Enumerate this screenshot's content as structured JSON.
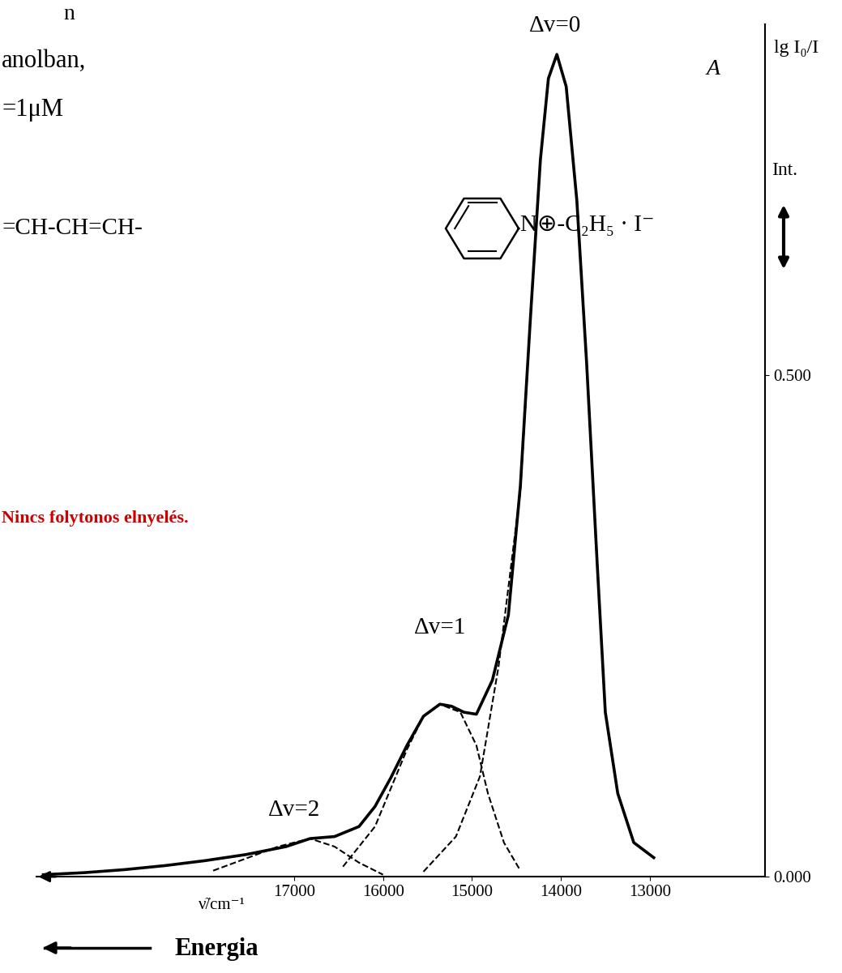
{
  "chart_data": {
    "type": "line",
    "header_fragments": [
      "n",
      "anolban,",
      "=1μM"
    ],
    "structure": {
      "left": "=CH-CH=CH-",
      "right": "N⊕-C₂H₅ · I⁻"
    },
    "remark": {
      "text": "Nincs folytonos elnyelés.",
      "color": "#cc0000"
    },
    "ylabels": [
      "A",
      "lg I₀/I",
      "Int."
    ],
    "xlabel": "ν̃/cm⁻¹",
    "energy_label": "Energia",
    "xlim": [
      19900,
      11700
    ],
    "xticks": [
      17000,
      16000,
      15000,
      14000,
      13000
    ],
    "ylim": [
      0,
      0.85
    ],
    "yticks": [
      {
        "value": 0,
        "label": "0.000"
      },
      {
        "value": 0.5,
        "label": "0.500"
      }
    ],
    "series": [
      {
        "type": "line",
        "line_style": "solid",
        "color": "#000000",
        "x": [
          12955,
          13180,
          13360,
          13500,
          13590,
          13710,
          13820,
          13940,
          14045,
          14140,
          14230,
          14345,
          14455,
          14590,
          14770,
          14950,
          15090,
          15230,
          15360,
          15545,
          15730,
          15910,
          16090,
          16270,
          16545,
          16820,
          17090,
          17545,
          18000,
          18455,
          18910,
          19360,
          19820
        ],
        "values": [
          0.019,
          0.034,
          0.083,
          0.164,
          0.31,
          0.512,
          0.674,
          0.788,
          0.82,
          0.796,
          0.715,
          0.553,
          0.39,
          0.261,
          0.196,
          0.162,
          0.164,
          0.17,
          0.172,
          0.16,
          0.131,
          0.099,
          0.07,
          0.05,
          0.04,
          0.038,
          0.03,
          0.022,
          0.016,
          0.011,
          0.007,
          0.004,
          0.002
        ]
      },
      {
        "type": "line",
        "line_style": "dashed",
        "color": "#000000",
        "x": [
          15545,
          15180,
          14910,
          14700,
          14455,
          14345,
          14230,
          14140,
          14045,
          13940,
          13820,
          13710,
          13590,
          13500,
          13360,
          13180,
          12955
        ],
        "values": [
          0.005,
          0.04,
          0.1,
          0.21,
          0.385,
          0.553,
          0.715,
          0.796,
          0.82,
          0.788,
          0.674,
          0.512,
          0.31,
          0.164,
          0.083,
          0.034,
          0.019
        ]
      },
      {
        "type": "line",
        "line_style": "dashed",
        "color": "#000000",
        "x": [
          16450,
          16090,
          15730,
          15545,
          15360,
          15130,
          14950,
          14820,
          14640,
          14455
        ],
        "values": [
          0.01,
          0.05,
          0.127,
          0.16,
          0.172,
          0.164,
          0.131,
          0.083,
          0.034,
          0.006
        ]
      },
      {
        "type": "line",
        "line_style": "dashed",
        "color": "#000000",
        "x": [
          17910,
          17545,
          17180,
          16820,
          16545,
          16270,
          16000
        ],
        "values": [
          0.006,
          0.018,
          0.03,
          0.038,
          0.03,
          0.014,
          0.002
        ]
      }
    ],
    "annotations": [
      {
        "text": "Δv=0",
        "x": 14060,
        "y": 0.82
      },
      {
        "text": "Δv=1",
        "x": 15360,
        "y": 0.172
      },
      {
        "text": "Δv=2",
        "x": 16820,
        "y": 0.038
      }
    ]
  }
}
